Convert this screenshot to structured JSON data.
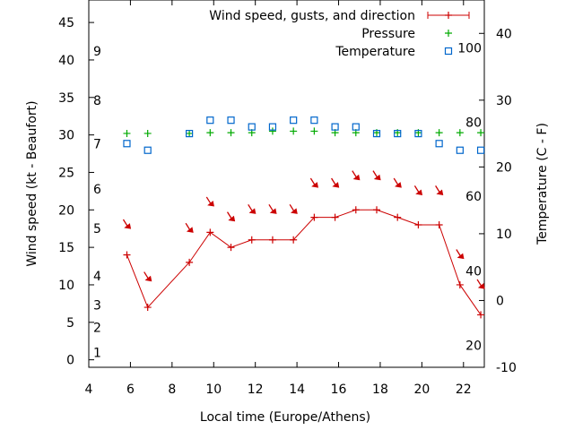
{
  "chart_data": {
    "type": "line",
    "xlabel": "Local time (Europe/Athens)",
    "ylabel": "Wind speed (kt - Beaufort)",
    "y2label": "Temperature (C - F)",
    "xlim": [
      4,
      23
    ],
    "ylim": [
      -1,
      48
    ],
    "y2lim": [
      -10,
      45
    ],
    "x_ticks": [
      4,
      6,
      8,
      10,
      12,
      14,
      16,
      18,
      20,
      22
    ],
    "y_ticks": [
      0,
      5,
      10,
      15,
      20,
      25,
      30,
      35,
      40,
      45
    ],
    "y2_ticks": [
      -10,
      0,
      10,
      20,
      30,
      40
    ],
    "beaufort_labels": [
      {
        "value": 1,
        "y": 1
      },
      {
        "value": 2,
        "y": 4.3
      },
      {
        "value": 3,
        "y": 7.3
      },
      {
        "value": 4,
        "y": 11.2
      },
      {
        "value": 5,
        "y": 17.5
      },
      {
        "value": 6,
        "y": 22.8
      },
      {
        "value": 7,
        "y": 28.8
      },
      {
        "value": 8,
        "y": 34.6
      },
      {
        "value": 9,
        "y": 41.2
      }
    ],
    "fahrenheit_labels": [
      {
        "value": 20,
        "t": -6.7
      },
      {
        "value": 40,
        "t": 4.4
      },
      {
        "value": 60,
        "t": 15.6
      },
      {
        "value": 80,
        "t": 26.7
      },
      {
        "value": 100,
        "t": 37.8
      }
    ],
    "legend_position": "top-right",
    "series": [
      {
        "name": "Wind speed, gusts, and direction",
        "color": "#cc0000",
        "style": "line-points",
        "x": [
          5.83,
          6.83,
          8.83,
          9.83,
          10.83,
          11.83,
          12.83,
          13.83,
          14.83,
          15.83,
          16.83,
          17.83,
          18.83,
          19.83,
          20.83,
          21.83,
          22.83
        ],
        "y": [
          14,
          7,
          13,
          17,
          15,
          16,
          16,
          16,
          19,
          19,
          20,
          20,
          19,
          18,
          18,
          10,
          6
        ],
        "arrow_y": [
          18,
          11,
          17.5,
          21,
          19,
          20,
          20,
          20,
          23.5,
          23.5,
          24.5,
          24.5,
          23.5,
          22.5,
          22.5,
          14,
          10
        ]
      },
      {
        "name": "Pressure",
        "color": "#00aa00",
        "style": "points-plus",
        "x": [
          5.83,
          6.83,
          8.83,
          9.83,
          10.83,
          11.83,
          12.83,
          13.83,
          14.83,
          15.83,
          16.83,
          17.83,
          18.83,
          19.83,
          20.83,
          21.83,
          22.83
        ],
        "y": [
          30.2,
          30.2,
          30.2,
          30.3,
          30.3,
          30.3,
          30.5,
          30.5,
          30.5,
          30.3,
          30.3,
          30.3,
          30.3,
          30.3,
          30.3,
          30.3,
          30.3
        ]
      },
      {
        "name": "Temperature",
        "color": "#0066cc",
        "style": "points-square",
        "axis": "y2",
        "x": [
          5.83,
          6.83,
          8.83,
          9.83,
          10.83,
          11.83,
          12.83,
          13.83,
          14.83,
          15.83,
          16.83,
          17.83,
          18.83,
          19.83,
          20.83,
          21.83,
          22.83
        ],
        "y": [
          23.5,
          22.5,
          25,
          27,
          27,
          26,
          26,
          27,
          27,
          26,
          26,
          25,
          25,
          25,
          23.5,
          22.5,
          22.5
        ]
      }
    ]
  }
}
